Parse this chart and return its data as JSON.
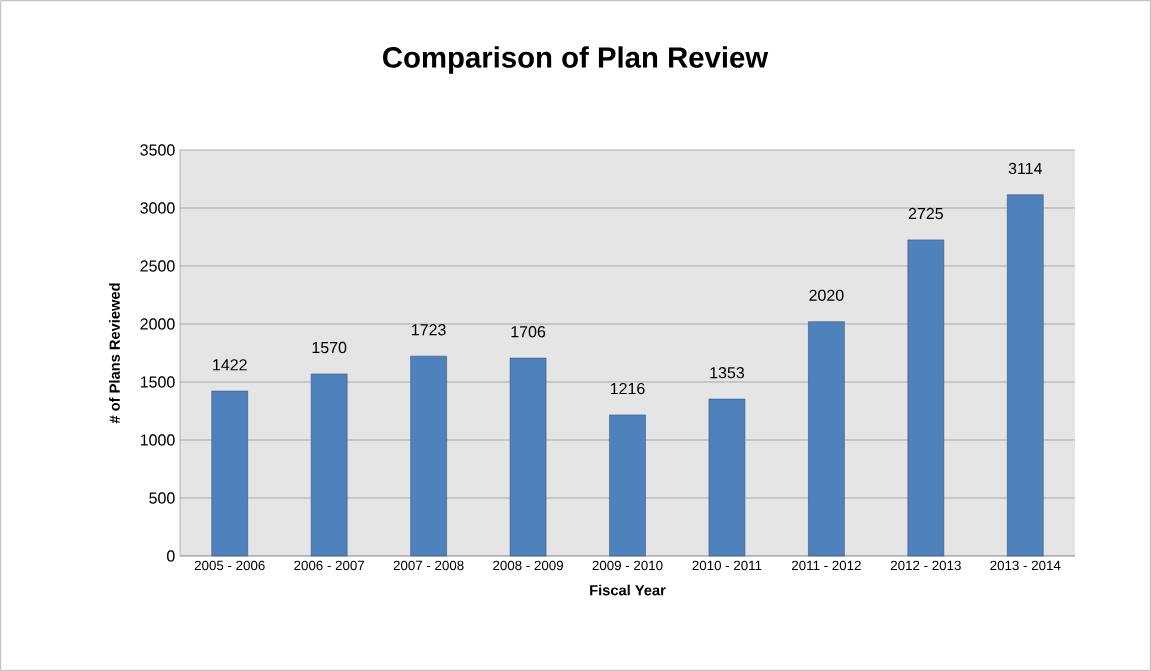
{
  "chart_data": {
    "type": "bar",
    "title": "Comparison of Plan Review",
    "xlabel": "Fiscal Year",
    "ylabel": "# of Plans Reviewed",
    "categories": [
      "2005 - 2006",
      "2006 - 2007",
      "2007 - 2008",
      "2008 - 2009",
      "2009 - 2010",
      "2010 - 2011",
      "2011 - 2012",
      "2012 - 2013",
      "2013 - 2014"
    ],
    "values": [
      1422,
      1570,
      1723,
      1706,
      1216,
      1353,
      2020,
      2725,
      3114
    ],
    "color": "#4f81bd",
    "data_labels": true,
    "grid": "y",
    "ylim": [
      0,
      3500
    ],
    "yticks": [
      0,
      500,
      1000,
      1500,
      2000,
      2500,
      3000,
      3500
    ]
  }
}
